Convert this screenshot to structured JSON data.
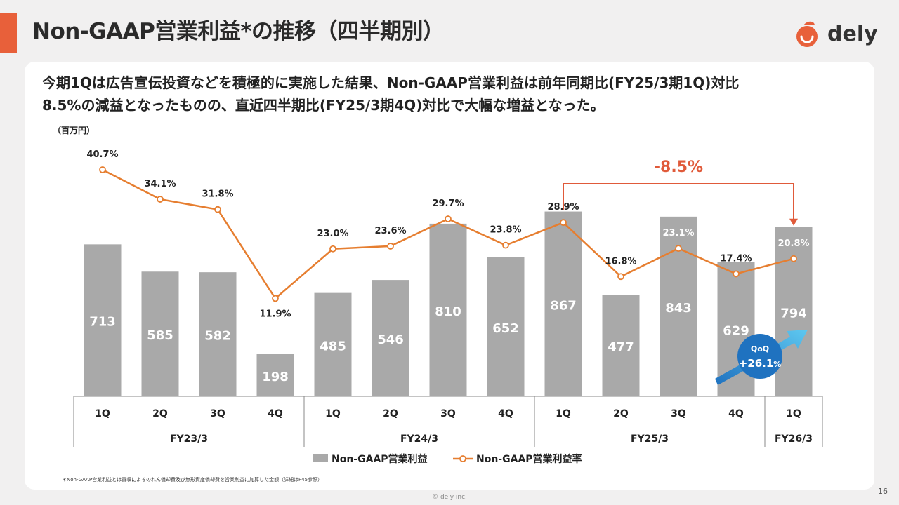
{
  "page": {
    "title": "Non-GAAP営業利益*の推移（四半期別）",
    "headline_line1": "今期1Qは広告宣伝投資などを積極的に実施した結果、Non-GAAP営業利益は前年同期比(FY25/3期1Q)対比",
    "headline_line2": "8.5%の減益となったものの、直近四半期比(FY25/3期4Q)対比で大幅な増益となった。",
    "logo_text": "dely",
    "footnote": "＊Non-GAAP営業利益とは買収によるのれん償却費及び無形資産償却費を営業利益に加算した金額（詳細はP45参照）",
    "copyright": "© dely inc.",
    "page_number": "16"
  },
  "colors": {
    "accent": "#e8603a",
    "bar": "#a9a9a9",
    "line": "#e67e30",
    "yoy_text": "#e05a3a",
    "qoq_badge": "#1f72c0"
  },
  "chart_data": {
    "type": "bar+line",
    "unit_label": "（百万円）",
    "categories": [
      "1Q",
      "2Q",
      "3Q",
      "4Q",
      "1Q",
      "2Q",
      "3Q",
      "4Q",
      "1Q",
      "2Q",
      "3Q",
      "4Q",
      "1Q"
    ],
    "fiscal_years": [
      {
        "label": "FY23/3",
        "count": 4
      },
      {
        "label": "FY24/3",
        "count": 4
      },
      {
        "label": "FY25/3",
        "count": 4
      },
      {
        "label": "FY26/3",
        "count": 1
      }
    ],
    "series": [
      {
        "name": "Non-GAAP営業利益",
        "type": "bar",
        "values": [
          713,
          585,
          582,
          198,
          485,
          546,
          810,
          652,
          867,
          477,
          843,
          629,
          794
        ]
      },
      {
        "name": "Non-GAAP営業利益率",
        "type": "line",
        "values": [
          40.7,
          34.1,
          31.8,
          11.9,
          23.0,
          23.6,
          29.7,
          23.8,
          28.9,
          16.8,
          23.1,
          17.4,
          20.8
        ],
        "labels": [
          "40.7%",
          "34.1%",
          "31.8%",
          "11.9%",
          "23.0%",
          "23.6%",
          "29.7%",
          "23.8%",
          "28.9%",
          "16.8%",
          "23.1%",
          "17.4%",
          "20.8%"
        ]
      }
    ],
    "bar_ylim": [
      0,
      1300
    ],
    "line_ylim": [
      -10,
      52
    ],
    "annotations": {
      "yoy_change": "-8.5%",
      "qoq_label": "QoQ",
      "qoq_value": "+26.1",
      "qoq_unit": "%"
    }
  }
}
